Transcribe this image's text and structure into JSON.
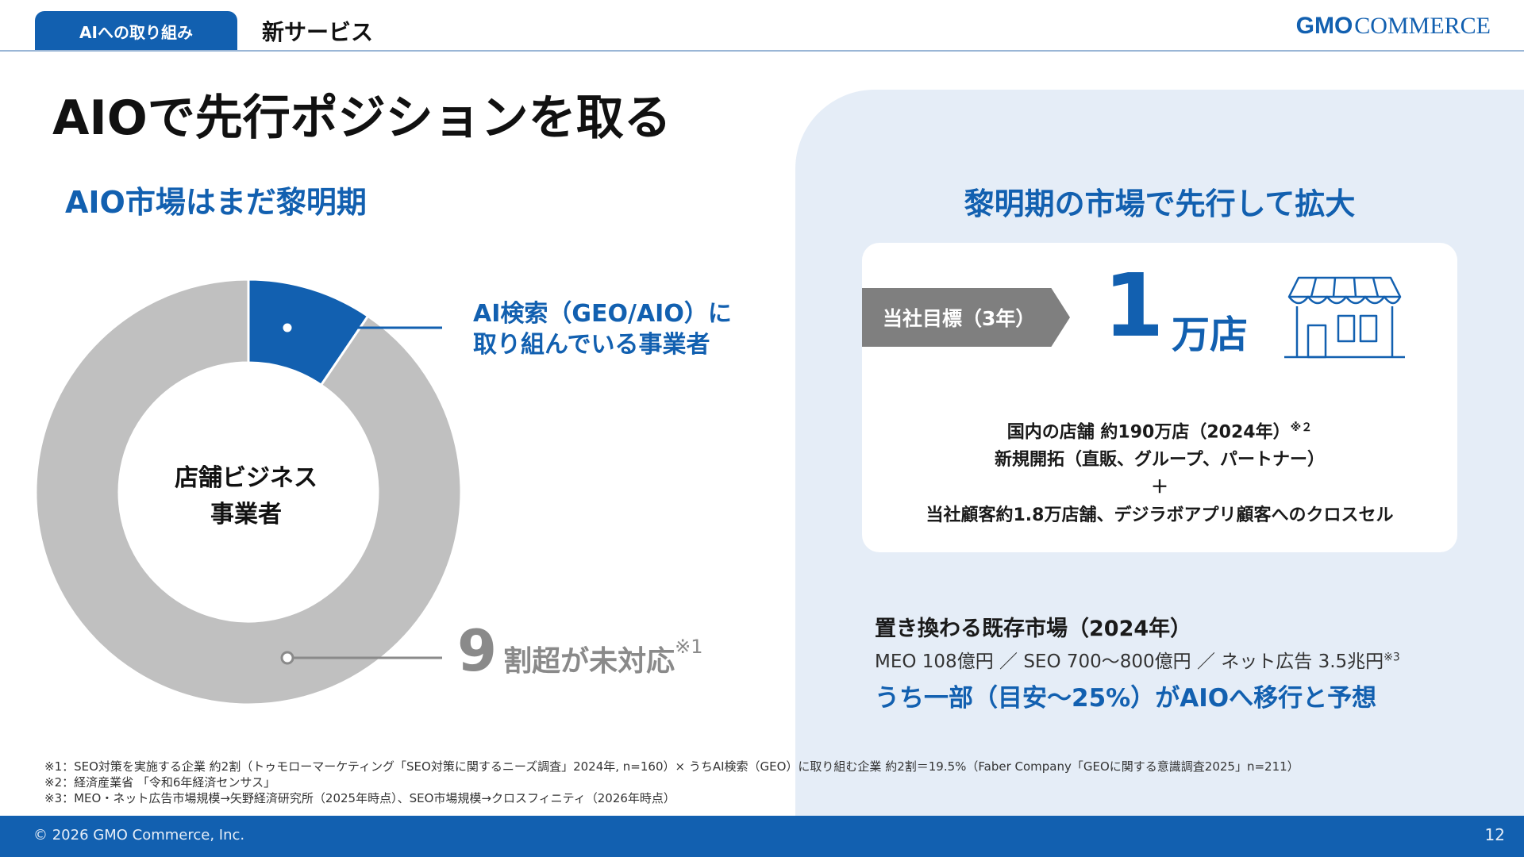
{
  "header": {
    "active_tab": "AIへの取り組み",
    "section": "新サービス",
    "logo_gmo": "GMO",
    "logo_commerce": "COMMERCE"
  },
  "title": "AIOで先行ポジションを取る",
  "left": {
    "subtitle": "AIO市場はまだ黎明期",
    "center_line1": "店舗ビジネス",
    "center_line2": "事業者",
    "ai_line1": "AI検索（GEO/AIO）に",
    "ai_line2": "取り組んでいる事業者",
    "nine_num": "9",
    "nine_text": "割超が未対応",
    "nine_note": "※1"
  },
  "chart_data": {
    "type": "pie",
    "style": "donut",
    "slices": [
      {
        "label": "AI検索（GEO/AIO）に取り組んでいる事業者",
        "value": 9.5,
        "color": "#1260b0"
      },
      {
        "label": "割超が未対応",
        "value": 90.5,
        "color": "#c0c0c0"
      }
    ],
    "center_label": "店舗ビジネス事業者"
  },
  "right": {
    "subtitle": "黎明期の市場で先行して拡大",
    "target_label": "当社目標（3年）",
    "target_value": "1",
    "target_unit": "万店",
    "line1": "国内の店舗 約190万店（2024年）",
    "line1_note": "※２",
    "line2": "新規開拓（直販、グループ、パートナー）",
    "line3": "＋",
    "line4": "当社顧客約1.8万店舗、デジラボアプリ顧客へのクロスセル",
    "market_title": "置き換わる既存市場（2024年）",
    "market_line": "MEO 108億円 ／ SEO 700～800億円 ／ ネット広告 3.5兆円",
    "market_note": "※3",
    "market_highlight": "うち一部（目安～25%）がAIOへ移行と予想"
  },
  "footnotes": [
    "※1：SEO対策を実施する企業 約2割（トゥモローマーケティング「SEO対策に関するニーズ調査」2024年, n=160）× うちAI検索（GEO）に取り組む企業 約2割＝19.5%（Faber Company「GEOに関する意識調査2025」n=211）",
    "※2：経済産業省 「令和6年経済センサス」",
    "※3：MEO・ネット広告市場規模→矢野経済研究所（2025年時点）、SEO市場規模→クロスフィニティ（2026年時点）"
  ],
  "footer": {
    "copyright": "© 2026 GMO Commerce, Inc.",
    "page": "12"
  },
  "colors": {
    "brand_blue": "#1260b0",
    "gray": "#c0c0c0",
    "panel": "#e5edf7"
  }
}
